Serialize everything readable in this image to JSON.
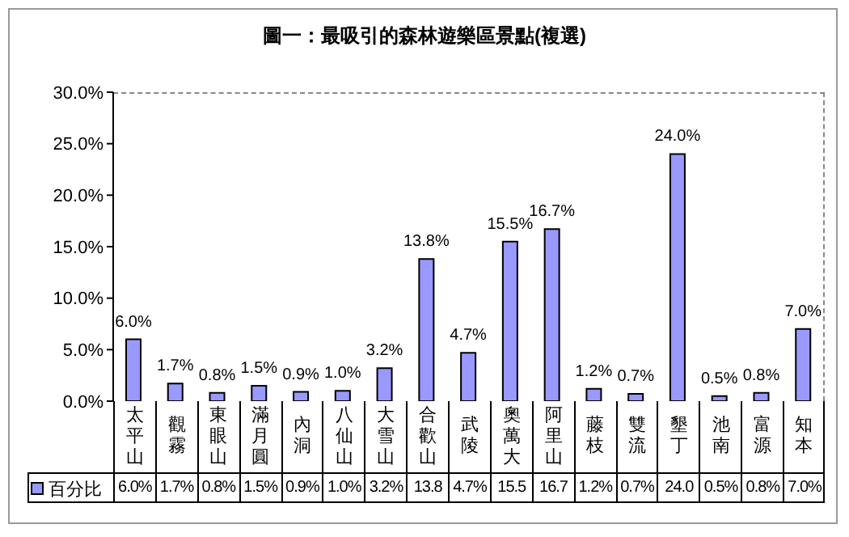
{
  "chart_data": {
    "type": "bar",
    "title": "圖一：最吸引的森林遊樂區景點(複選)",
    "categories": [
      "太平山",
      "觀霧",
      "東眼山",
      "滿月圓",
      "內洞",
      "八仙山",
      "大雪山",
      "合歡山",
      "武陵",
      "奧萬大",
      "阿里山",
      "藤枝",
      "雙流",
      "墾丁",
      "池南",
      "富源",
      "知本"
    ],
    "series": [
      {
        "name": "百分比",
        "color": "#9999ff",
        "values": [
          6.0,
          1.7,
          0.8,
          1.5,
          0.9,
          1.0,
          3.2,
          13.8,
          4.7,
          15.5,
          16.7,
          1.2,
          0.7,
          24.0,
          0.5,
          0.8,
          7.0
        ],
        "value_labels": [
          "6.0%",
          "1.7%",
          "0.8%",
          "1.5%",
          "0.9%",
          "1.0%",
          "3.2%",
          "13.8%",
          "4.7%",
          "15.5%",
          "16.7%",
          "1.2%",
          "0.7%",
          "24.0%",
          "0.5%",
          "0.8%",
          "7.0%"
        ]
      }
    ],
    "ylim": [
      0,
      30
    ],
    "yticks": [
      {
        "value": 0,
        "label": "0.0%"
      },
      {
        "value": 5,
        "label": "5.0%"
      },
      {
        "value": 10,
        "label": "10.0%"
      },
      {
        "value": 15,
        "label": "15.0%"
      },
      {
        "value": 20,
        "label": "20.0%"
      },
      {
        "value": 25,
        "label": "25.0%"
      },
      {
        "value": 30,
        "label": "30.0%"
      }
    ],
    "annotations": [
      "6.0%",
      "1.7%",
      "0.8%",
      "1.5%",
      "0.9%",
      "1.0%",
      "3.2%",
      "13.8",
      "4.7%",
      "15.5",
      "16.7",
      "1.2%",
      "0.7%",
      "24.0",
      "0.5%",
      "0.8%",
      "7.0%"
    ],
    "legend": "bottom"
  }
}
